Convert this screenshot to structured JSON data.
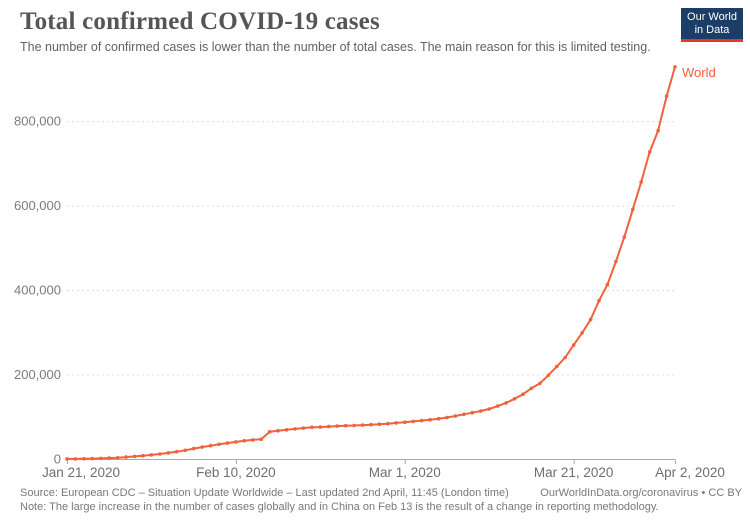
{
  "header": {
    "title": "Total confirmed COVID-19 cases",
    "subtitle": "The number of confirmed cases is lower than the number of total cases. The main reason for this is limited testing."
  },
  "logo": {
    "line1": "Our World",
    "line2": "in Data",
    "bg_color": "#1b3d66",
    "bar_color": "#dc3b29"
  },
  "chart_data": {
    "type": "line",
    "title": "Total confirmed COVID-19 cases",
    "xlabel": "",
    "ylabel": "",
    "ylim": [
      0,
      940000
    ],
    "grid": "horizontal-dashed",
    "legend_position": "end-of-line-label",
    "line_color": "#f0613c",
    "gridline_color": "#dcdcdc",
    "axis_color": "#a9a9a9",
    "x": [
      "2020-01-21",
      "2020-01-22",
      "2020-01-23",
      "2020-01-24",
      "2020-01-25",
      "2020-01-26",
      "2020-01-27",
      "2020-01-28",
      "2020-01-29",
      "2020-01-30",
      "2020-01-31",
      "2020-02-01",
      "2020-02-02",
      "2020-02-03",
      "2020-02-04",
      "2020-02-05",
      "2020-02-06",
      "2020-02-07",
      "2020-02-08",
      "2020-02-09",
      "2020-02-10",
      "2020-02-11",
      "2020-02-12",
      "2020-02-13",
      "2020-02-14",
      "2020-02-15",
      "2020-02-16",
      "2020-02-17",
      "2020-02-18",
      "2020-02-19",
      "2020-02-20",
      "2020-02-21",
      "2020-02-22",
      "2020-02-23",
      "2020-02-24",
      "2020-02-25",
      "2020-02-26",
      "2020-02-27",
      "2020-02-28",
      "2020-02-29",
      "2020-03-01",
      "2020-03-02",
      "2020-03-03",
      "2020-03-04",
      "2020-03-05",
      "2020-03-06",
      "2020-03-07",
      "2020-03-08",
      "2020-03-09",
      "2020-03-10",
      "2020-03-11",
      "2020-03-12",
      "2020-03-13",
      "2020-03-14",
      "2020-03-15",
      "2020-03-16",
      "2020-03-17",
      "2020-03-18",
      "2020-03-19",
      "2020-03-20",
      "2020-03-21",
      "2020-03-22",
      "2020-03-23",
      "2020-03-24",
      "2020-03-25",
      "2020-03-26",
      "2020-03-27",
      "2020-03-28",
      "2020-03-29",
      "2020-03-30",
      "2020-03-31",
      "2020-04-01",
      "2020-04-02"
    ],
    "series": [
      {
        "name": "World",
        "color": "#f0613c",
        "values": [
          282,
          314,
          581,
          846,
          1320,
          2014,
          2798,
          4593,
          6065,
          7818,
          9826,
          11953,
          14557,
          17391,
          20630,
          24554,
          28276,
          31481,
          34886,
          37558,
          40554,
          43103,
          45171,
          46997,
          64438,
          66885,
          69030,
          71224,
          73260,
          75138,
          75641,
          76677,
          77794,
          78811,
          79331,
          80239,
          81109,
          82294,
          83652,
          85403,
          87137,
          88948,
          90869,
          93090,
          95324,
          98192,
          101927,
          105836,
          109577,
          113702,
          118319,
          125260,
          132758,
          142534,
          153517,
          167515,
          179112,
          198168,
          219345,
          240370,
          270106,
          298517,
          330168,
          374921,
          412636,
          467710,
          525458,
          590954,
          655875,
          727080,
          777286,
          859032,
          928437
        ]
      }
    ],
    "yticks": [
      {
        "value": 0,
        "label": "0"
      },
      {
        "value": 200000,
        "label": "200,000"
      },
      {
        "value": 400000,
        "label": "400,000"
      },
      {
        "value": 600000,
        "label": "600,000"
      },
      {
        "value": 800000,
        "label": "800,000"
      }
    ],
    "xticks": [
      {
        "index": 0,
        "label": "Jan 21, 2020"
      },
      {
        "index": 20,
        "label": "Feb 10, 2020"
      },
      {
        "index": 40,
        "label": "Mar 1, 2020"
      },
      {
        "index": 60,
        "label": "Mar 21, 2020"
      },
      {
        "index": 72,
        "label": "Apr 2, 2020"
      }
    ]
  },
  "footer": {
    "source": "Source: European CDC – Situation Update Worldwide – Last updated 2nd April, 11:45 (London time)",
    "attribution": "OurWorldInData.org/coronavirus • CC BY",
    "note": "Note: The large increase in the number of cases globally and in China on Feb 13 is the result of a change in reporting methodology."
  }
}
